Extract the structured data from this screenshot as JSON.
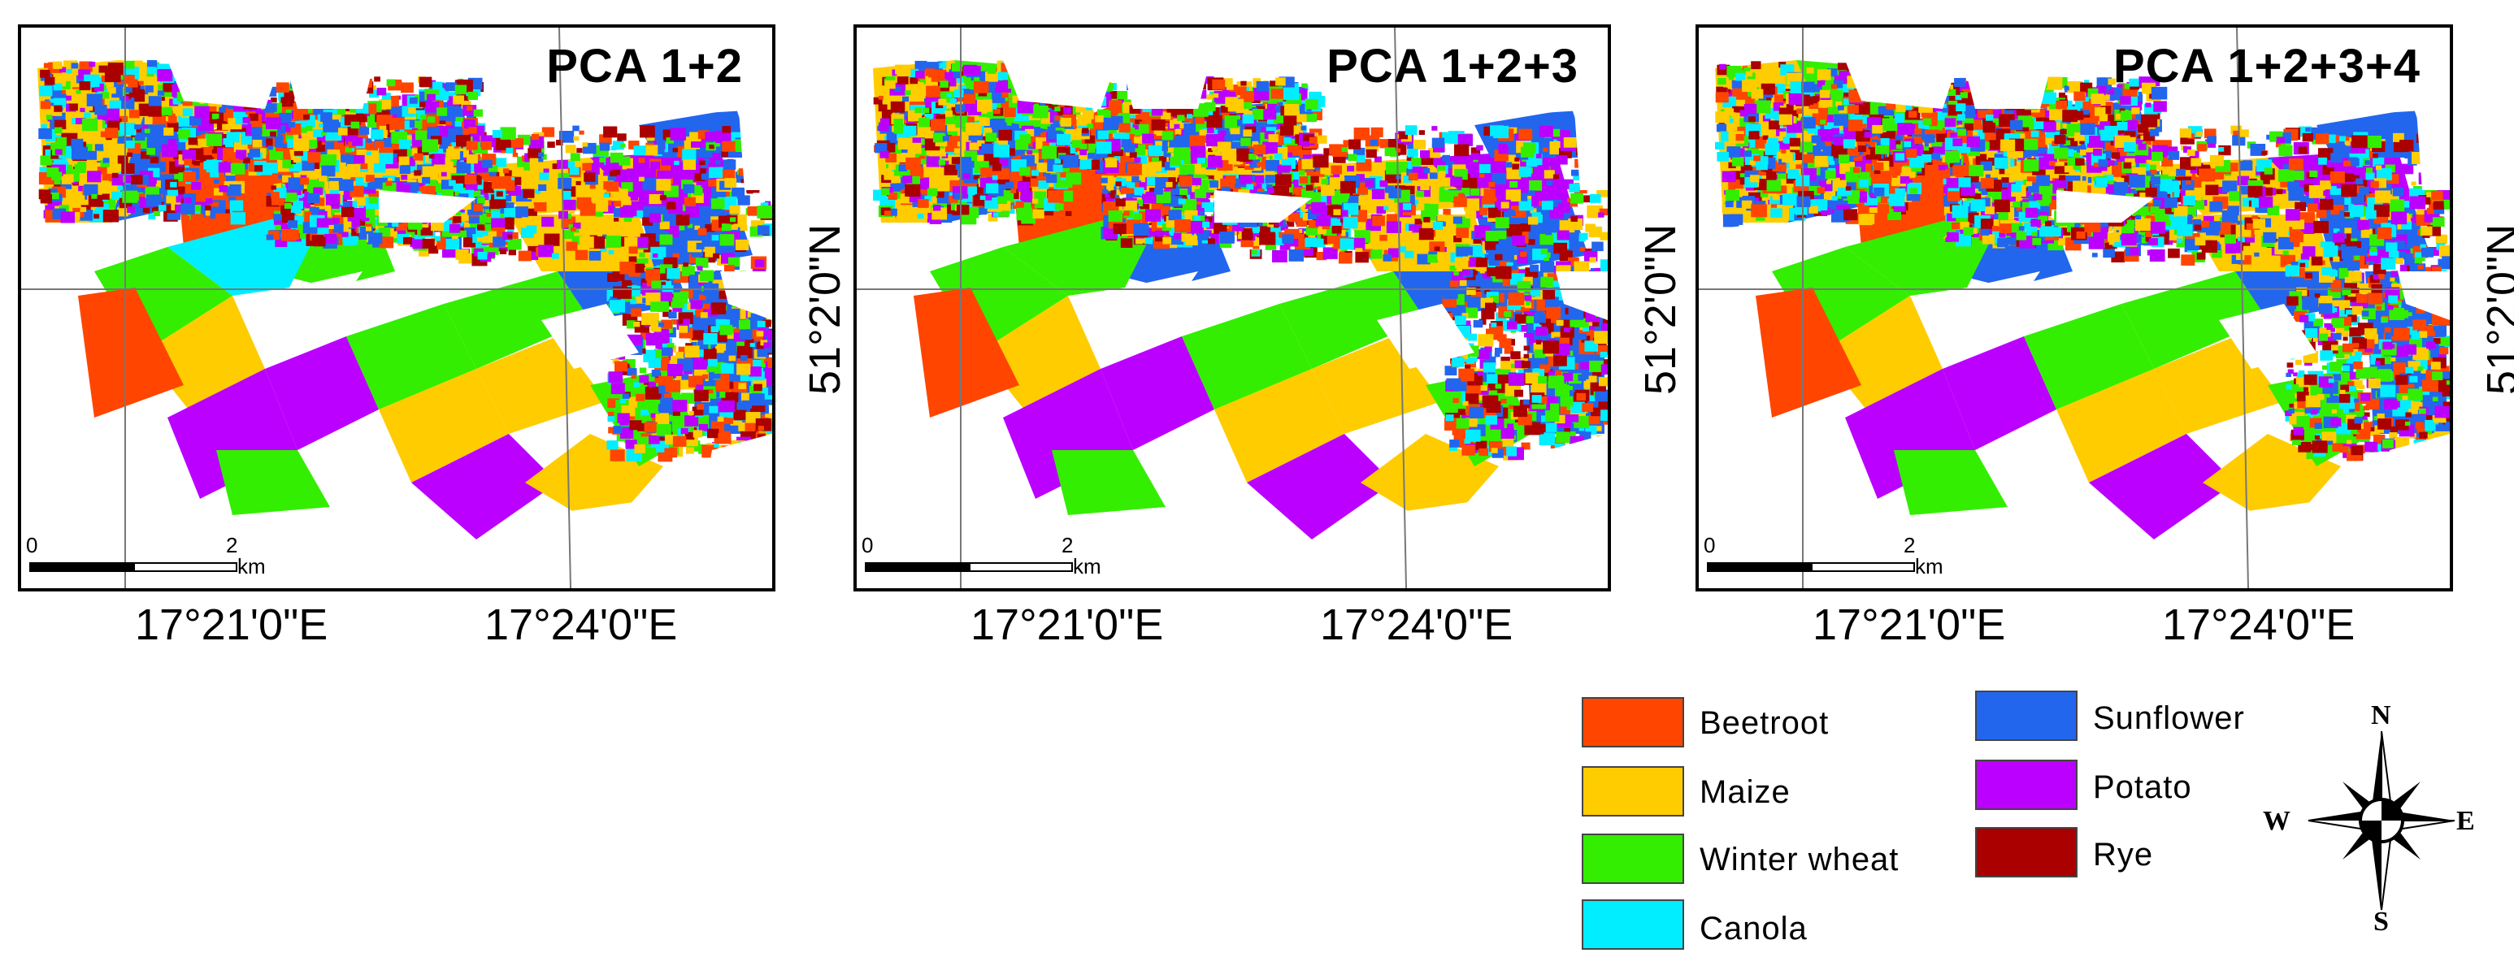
{
  "maps": [
    {
      "title": "PCA 1+2",
      "lon_labels": [
        "17°21'0\"E",
        "17°24'0\"E"
      ],
      "lat_label": "51°2'0\"N",
      "scale": {
        "zero": "0",
        "two": "2",
        "unit": "km"
      }
    },
    {
      "title": "PCA 1+2+3",
      "lon_labels": [
        "17°21'0\"E",
        "17°24'0\"E"
      ],
      "lat_label": "51°2'0\"N",
      "scale": {
        "zero": "0",
        "two": "2",
        "unit": "km"
      }
    },
    {
      "title": "PCA 1+2+3+4",
      "lon_labels": [
        "17°21'0\"E",
        "17°24'0\"E"
      ],
      "lat_label": "51°2'0\"N",
      "scale": {
        "zero": "0",
        "two": "2",
        "unit": "km"
      }
    }
  ],
  "legend": [
    {
      "label": "Beetroot",
      "color": "#FF4500"
    },
    {
      "label": "Maize",
      "color": "#FFCC00"
    },
    {
      "label": "Winter wheat",
      "color": "#33EE00"
    },
    {
      "label": "Canola",
      "color": "#00EEFF"
    },
    {
      "label": "Sunflower",
      "color": "#2266EE"
    },
    {
      "label": "Potato",
      "color": "#BB00FF"
    },
    {
      "label": "Rye",
      "color": "#AA0000"
    }
  ],
  "compass": {
    "n": "N",
    "s": "S",
    "e": "E",
    "w": "W"
  }
}
